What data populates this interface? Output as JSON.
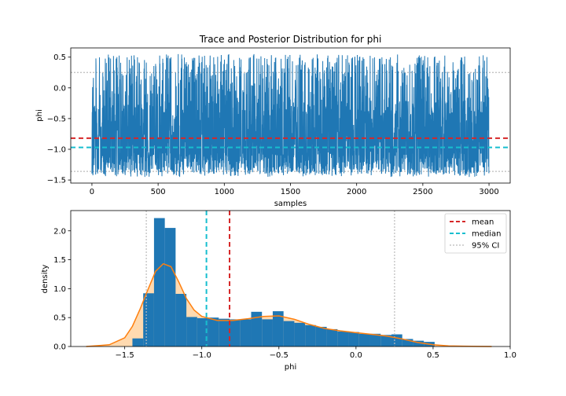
{
  "colors": {
    "trace": "#1f77b4",
    "hist": "#1f77b4",
    "kde": "#ff7f0e",
    "kde_fill": "#ffdab0",
    "mean": "#d62728",
    "median": "#17becf",
    "ci": "#bbbbbb"
  },
  "chart_data": [
    {
      "type": "line",
      "title": "Trace and Posterior Distribution for phi",
      "xlabel": "samples",
      "ylabel": "phi",
      "xlim": [
        -160,
        3160
      ],
      "ylim": [
        -1.55,
        0.65
      ],
      "x_ticks": [
        0,
        500,
        1000,
        1500,
        2000,
        2500,
        3000
      ],
      "y_ticks": [
        0.5,
        0.0,
        -0.5,
        -1.0,
        -1.5
      ],
      "y_tick_labels": [
        "0.5",
        "0.0",
        "−0.5",
        "−1.0",
        "−1.5"
      ],
      "n_samples": 3000,
      "trace_range": [
        -1.45,
        0.55
      ],
      "mean": -0.82,
      "median": -0.97,
      "ci95": [
        -1.36,
        0.25
      ]
    },
    {
      "type": "bar",
      "subtype": "histogram_with_kde",
      "xlabel": "phi",
      "ylabel": "density",
      "xlim": [
        -1.85,
        1.0
      ],
      "ylim": [
        0,
        2.35
      ],
      "x_ticks": [
        -1.5,
        -1.0,
        -0.5,
        0.0,
        0.5,
        1.0
      ],
      "x_tick_labels": [
        "−1.5",
        "−1.0",
        "−0.5",
        "0.0",
        "0.5",
        "1.0"
      ],
      "y_ticks": [
        0.0,
        0.5,
        1.0,
        1.5,
        2.0
      ],
      "y_tick_labels": [
        "0.0",
        "0.5",
        "1.0",
        "1.5",
        "2.0"
      ],
      "bin_edges": [
        -1.45,
        -1.38,
        -1.31,
        -1.24,
        -1.17,
        -1.1,
        -1.03,
        -0.96,
        -0.89,
        -0.82,
        -0.75,
        -0.68,
        -0.61,
        -0.54,
        -0.47,
        -0.4,
        -0.33,
        -0.26,
        -0.19,
        -0.12,
        -0.05,
        0.02,
        0.09,
        0.16,
        0.23,
        0.3,
        0.37,
        0.44,
        0.51
      ],
      "densities": [
        0.14,
        0.92,
        2.22,
        2.05,
        0.91,
        0.51,
        0.49,
        0.5,
        0.48,
        0.47,
        0.47,
        0.6,
        0.47,
        0.61,
        0.44,
        0.41,
        0.37,
        0.34,
        0.3,
        0.26,
        0.25,
        0.22,
        0.22,
        0.2,
        0.21,
        0.13,
        0.1,
        0.08
      ],
      "kde_x": [
        -1.75,
        -1.6,
        -1.5,
        -1.45,
        -1.4,
        -1.35,
        -1.3,
        -1.25,
        -1.2,
        -1.15,
        -1.1,
        -1.05,
        -1.0,
        -0.9,
        -0.8,
        -0.7,
        -0.6,
        -0.5,
        -0.4,
        -0.3,
        -0.2,
        -0.1,
        0.0,
        0.1,
        0.2,
        0.3,
        0.4,
        0.5,
        0.6,
        0.7,
        0.8,
        0.88
      ],
      "kde_y": [
        0.0,
        0.03,
        0.15,
        0.35,
        0.65,
        0.98,
        1.3,
        1.43,
        1.38,
        1.12,
        0.83,
        0.63,
        0.52,
        0.45,
        0.45,
        0.48,
        0.52,
        0.53,
        0.47,
        0.38,
        0.31,
        0.27,
        0.24,
        0.21,
        0.18,
        0.13,
        0.07,
        0.03,
        0.01,
        0.005,
        0.002,
        0.0
      ],
      "mean": -0.82,
      "median": -0.97,
      "ci95": [
        -1.36,
        0.25
      ],
      "legend": {
        "position": "upper right",
        "entries": [
          "mean",
          "median",
          "95% CI"
        ]
      }
    }
  ]
}
